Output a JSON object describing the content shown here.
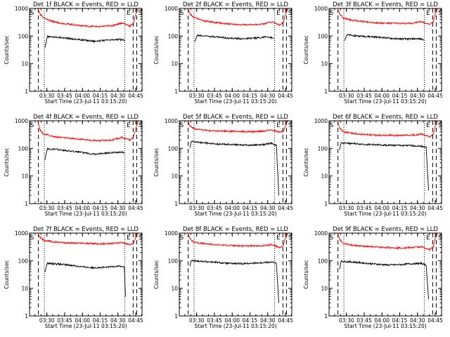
{
  "chart_data": [
    {
      "type": "line",
      "title": "Det 1f BLACK = Events, RED = LLD",
      "xlabel": "Start Time (23-Jul-11 03:15:20)",
      "ylabel": "Counts/sec",
      "yscale": "log",
      "ylim": [
        1,
        1000
      ],
      "yticks": [
        "1",
        "10",
        "100",
        "1000"
      ],
      "x_ticks": [
        "03:30",
        "03:45",
        "04:00",
        "04:15",
        "04:30",
        "04:45"
      ],
      "xlim_min": [
        0,
        95
      ],
      "markers": {
        "dashed_min": [
          7.5,
          87.5,
          90.5
        ],
        "dotted_min": [
          12.5,
          80.5
        ],
        "letters": [
          {
            "text": "S",
            "x_min": 0.5
          },
          {
            "text": "E",
            "x_min": 82
          },
          {
            "text": "S",
            "x_min": 92
          }
        ]
      },
      "series": [
        {
          "color": "#000000",
          "x_min": [
            13,
            15,
            25,
            35,
            45,
            55,
            65,
            75,
            80
          ],
          "values": [
            40,
            95,
            90,
            80,
            72,
            65,
            70,
            75,
            72
          ]
        },
        {
          "color": "#ff0000",
          "x_min": [
            7,
            9,
            12,
            20,
            30,
            40,
            50,
            60,
            70,
            78,
            85,
            88,
            90,
            92
          ],
          "values": [
            1000,
            620,
            450,
            330,
            280,
            250,
            225,
            220,
            240,
            300,
            230,
            300,
            700,
            1000
          ]
        }
      ]
    },
    {
      "type": "line",
      "title": "Det 2f BLACK = Events, RED = LLD",
      "xlabel": "Start Time (23-Jul-11 03:15:20)",
      "ylabel": "Counts/sec",
      "yscale": "log",
      "ylim": [
        1,
        1000
      ],
      "yticks": [
        "1",
        "10",
        "100",
        "1000"
      ],
      "x_ticks": [
        "03:30",
        "03:45",
        "04:00",
        "04:15",
        "04:30",
        "04:45"
      ],
      "xlim_min": [
        0,
        95
      ],
      "markers": {
        "dashed_min": [
          7.5,
          87.5,
          90.5
        ],
        "dotted_min": [
          12.5,
          80.5
        ],
        "letters": [
          {
            "text": "S",
            "x_min": 0.5
          },
          {
            "text": "E",
            "x_min": 82
          },
          {
            "text": "S",
            "x_min": 92
          }
        ]
      },
      "series": [
        {
          "color": "#000000",
          "x_min": [
            13,
            15,
            25,
            35,
            45,
            55,
            65,
            75,
            80
          ],
          "values": [
            60,
            105,
            100,
            90,
            82,
            80,
            85,
            95,
            80
          ]
        },
        {
          "color": "#ff0000",
          "x_min": [
            7,
            9,
            12,
            20,
            30,
            40,
            50,
            60,
            70,
            78,
            85,
            88,
            90,
            92
          ],
          "values": [
            1000,
            650,
            480,
            360,
            310,
            280,
            260,
            255,
            270,
            320,
            250,
            320,
            750,
            1000
          ]
        }
      ]
    },
    {
      "type": "line",
      "title": "Det 3f BLACK = Events, RED = LLD",
      "xlabel": "Start Time (23-Jul-11 03:15:20)",
      "ylabel": "Counts/sec",
      "yscale": "log",
      "ylim": [
        1,
        1000
      ],
      "yticks": [
        "1",
        "10",
        "100",
        "1000"
      ],
      "x_ticks": [
        "03:30",
        "03:45",
        "04:00",
        "04:15",
        "04:30",
        "04:45"
      ],
      "xlim_min": [
        0,
        95
      ],
      "markers": {
        "dashed_min": [
          7.5,
          87.5,
          90.5
        ],
        "dotted_min": [
          12.5,
          80.5
        ],
        "letters": [
          {
            "text": "S",
            "x_min": 0.5
          },
          {
            "text": "E",
            "x_min": 82
          },
          {
            "text": "S",
            "x_min": 92
          }
        ]
      },
      "series": [
        {
          "color": "#000000",
          "x_min": [
            13,
            15,
            25,
            35,
            45,
            55,
            65,
            75,
            80
          ],
          "values": [
            70,
            110,
            100,
            95,
            88,
            80,
            78,
            80,
            75
          ]
        },
        {
          "color": "#ff0000",
          "x_min": [
            7,
            9,
            12,
            20,
            30,
            40,
            50,
            60,
            70,
            78,
            85,
            88,
            90,
            92
          ],
          "values": [
            1000,
            620,
            450,
            370,
            330,
            300,
            290,
            285,
            290,
            330,
            260,
            330,
            760,
            1000
          ]
        }
      ]
    },
    {
      "type": "line",
      "title": "Det 4f BLACK = Events, RED = LLD",
      "xlabel": "Start Time (23-Jul-11 03:15:20)",
      "ylabel": "Counts/sec",
      "yscale": "log",
      "ylim": [
        1,
        1000
      ],
      "yticks": [
        "1",
        "10",
        "100",
        "1000"
      ],
      "x_ticks": [
        "03:30",
        "03:45",
        "04:00",
        "04:15",
        "04:30",
        "04:45"
      ],
      "xlim_min": [
        0,
        95
      ],
      "markers": {
        "dashed_min": [
          7.5,
          87.5,
          90.5
        ],
        "dotted_min": [
          12.5,
          80.5
        ],
        "letters": [
          {
            "text": "S",
            "x_min": 0.5
          },
          {
            "text": "E",
            "x_min": 82
          },
          {
            "text": "S",
            "x_min": 92
          }
        ]
      },
      "series": [
        {
          "color": "#000000",
          "x_min": [
            13,
            15,
            25,
            35,
            45,
            55,
            65,
            75,
            80
          ],
          "values": [
            40,
            95,
            90,
            80,
            70,
            62,
            68,
            72,
            70
          ]
        },
        {
          "color": "#ff0000",
          "x_min": [
            7,
            9,
            12,
            20,
            30,
            40,
            50,
            60,
            70,
            78,
            85,
            88,
            90,
            92
          ],
          "values": [
            1000,
            450,
            330,
            270,
            240,
            220,
            200,
            190,
            200,
            250,
            200,
            260,
            600,
            1000
          ]
        }
      ]
    },
    {
      "type": "line",
      "title": "Det 5f BLACK = Events, RED = LLD",
      "xlabel": "Start Time (23-Jul-11 03:15:20)",
      "ylabel": "Counts/sec",
      "yscale": "log",
      "ylim": [
        1,
        1000
      ],
      "yticks": [
        "1",
        "10",
        "100",
        "1000"
      ],
      "x_ticks": [
        "03:30",
        "03:45",
        "04:00",
        "04:15",
        "04:30",
        "04:45"
      ],
      "xlim_min": [
        0,
        95
      ],
      "markers": {
        "dashed_min": [
          7.5,
          87.5,
          90.5
        ],
        "dotted_min": [
          12.5,
          80.5
        ],
        "letters": [
          {
            "text": "S",
            "x_min": 0.5
          },
          {
            "text": "E",
            "x_min": 82
          },
          {
            "text": "S",
            "x_min": 92
          }
        ]
      },
      "series": [
        {
          "color": "#000000",
          "x_min": [
            9,
            10,
            20,
            30,
            40,
            50,
            60,
            70,
            78,
            82,
            84
          ],
          "values": [
            100,
            180,
            160,
            145,
            140,
            138,
            130,
            135,
            155,
            130,
            2
          ]
        },
        {
          "color": "#ff0000",
          "x_min": [
            7,
            9,
            12,
            20,
            30,
            40,
            50,
            60,
            70,
            78,
            85,
            88,
            90,
            92
          ],
          "values": [
            1000,
            680,
            520,
            460,
            430,
            420,
            410,
            400,
            420,
            470,
            380,
            420,
            780,
            1000
          ]
        }
      ]
    },
    {
      "type": "line",
      "title": "Det 6f BLACK = Events, RED = LLD",
      "xlabel": "Start Time (23-Jul-11 03:15:20)",
      "ylabel": "Counts/sec",
      "yscale": "log",
      "ylim": [
        1,
        1000
      ],
      "yticks": [
        "1",
        "10",
        "100",
        "1000"
      ],
      "x_ticks": [
        "03:30",
        "03:45",
        "04:00",
        "04:15",
        "04:30",
        "04:45"
      ],
      "xlim_min": [
        0,
        95
      ],
      "markers": {
        "dashed_min": [
          7.5,
          87.5,
          90.5
        ],
        "dotted_min": [
          12.5,
          80.5
        ],
        "letters": [
          {
            "text": "S",
            "x_min": 0.5
          },
          {
            "text": "E",
            "x_min": 82
          },
          {
            "text": "S",
            "x_min": 92
          }
        ]
      },
      "series": [
        {
          "color": "#000000",
          "x_min": [
            9,
            10,
            20,
            30,
            40,
            50,
            60,
            70,
            78,
            82,
            84
          ],
          "values": [
            90,
            160,
            150,
            140,
            135,
            130,
            128,
            125,
            120,
            110,
            3
          ]
        },
        {
          "color": "#ff0000",
          "x_min": [
            7,
            9,
            12,
            20,
            30,
            40,
            50,
            60,
            70,
            78,
            85,
            88,
            90,
            92
          ],
          "values": [
            1000,
            560,
            400,
            350,
            320,
            300,
            300,
            290,
            300,
            330,
            260,
            320,
            760,
            1000
          ]
        }
      ]
    },
    {
      "type": "line",
      "title": "Det 7f BLACK = Events, RED = LLD",
      "xlabel": "Start Time (23-Jul-11 03:15:20)",
      "ylabel": "Counts/sec",
      "yscale": "log",
      "ylim": [
        1,
        1000
      ],
      "yticks": [
        "1",
        "10",
        "100",
        "1000"
      ],
      "x_ticks": [
        "03:30",
        "03:45",
        "04:00",
        "04:15",
        "04:30",
        "04:45"
      ],
      "xlim_min": [
        0,
        95
      ],
      "markers": {
        "dashed_min": [
          7.5,
          87.5,
          90.5
        ],
        "dotted_min": [
          12.5,
          80.5
        ],
        "letters": [
          {
            "text": "S",
            "x_min": 0.5
          },
          {
            "text": "E",
            "x_min": 82
          },
          {
            "text": "S",
            "x_min": 92
          }
        ]
      },
      "series": [
        {
          "color": "#000000",
          "x_min": [
            13,
            15,
            25,
            35,
            45,
            55,
            65,
            75,
            80,
            81
          ],
          "values": [
            40,
            80,
            75,
            68,
            60,
            55,
            58,
            65,
            60,
            5
          ]
        },
        {
          "color": "#ff0000",
          "x_min": [
            7,
            9,
            12,
            20,
            30,
            40,
            50,
            60,
            70,
            78,
            85,
            88,
            90,
            92
          ],
          "values": [
            1000,
            700,
            550,
            480,
            450,
            430,
            420,
            410,
            420,
            460,
            380,
            430,
            800,
            1000
          ]
        }
      ]
    },
    {
      "type": "line",
      "title": "Det 8f BLACK = Events, RED = LLD",
      "xlabel": "Start Time (23-Jul-11 03:15:20)",
      "ylabel": "Counts/sec",
      "yscale": "log",
      "ylim": [
        1,
        1000
      ],
      "yticks": [
        "1",
        "10",
        "100",
        "1000"
      ],
      "x_ticks": [
        "03:30",
        "03:45",
        "04:00",
        "04:15",
        "04:30",
        "04:45"
      ],
      "xlim_min": [
        0,
        95
      ],
      "markers": {
        "dashed_min": [
          7.5,
          87.5,
          90.5
        ],
        "dotted_min": [
          12.5,
          80.5
        ],
        "letters": [
          {
            "text": "S",
            "x_min": 0.5
          },
          {
            "text": "E",
            "x_min": 82
          },
          {
            "text": "S",
            "x_min": 92
          }
        ]
      },
      "series": [
        {
          "color": "#000000",
          "x_min": [
            9,
            10,
            20,
            30,
            40,
            50,
            60,
            70,
            78,
            82,
            84
          ],
          "values": [
            60,
            100,
            95,
            88,
            80,
            78,
            80,
            85,
            90,
            80,
            3
          ]
        },
        {
          "color": "#ff0000",
          "x_min": [
            7,
            9,
            12,
            20,
            30,
            40,
            50,
            60,
            70,
            78,
            85,
            88,
            90,
            92
          ],
          "values": [
            1000,
            650,
            480,
            420,
            380,
            360,
            350,
            340,
            350,
            380,
            300,
            360,
            760,
            1000
          ]
        }
      ]
    },
    {
      "type": "line",
      "title": "Det 9f BLACK = Events, RED = LLD",
      "xlabel": "Start Time (23-Jul-11 03:15:20)",
      "ylabel": "Counts/sec",
      "yscale": "log",
      "ylim": [
        1,
        1000
      ],
      "yticks": [
        "1",
        "10",
        "100",
        "1000"
      ],
      "x_ticks": [
        "03:30",
        "03:45",
        "04:00",
        "04:15",
        "04:30",
        "04:45"
      ],
      "xlim_min": [
        0,
        95
      ],
      "markers": {
        "dashed_min": [
          7.5,
          87.5,
          90.5
        ],
        "dotted_min": [
          12.5,
          80.5
        ],
        "letters": [
          {
            "text": "S",
            "x_min": 0.5
          },
          {
            "text": "E",
            "x_min": 82
          },
          {
            "text": "S",
            "x_min": 92
          }
        ]
      },
      "series": [
        {
          "color": "#000000",
          "x_min": [
            9,
            10,
            20,
            30,
            40,
            50,
            60,
            70,
            78,
            82,
            84
          ],
          "values": [
            50,
            95,
            90,
            82,
            75,
            70,
            72,
            78,
            80,
            70,
            4
          ]
        },
        {
          "color": "#ff0000",
          "x_min": [
            7,
            9,
            12,
            20,
            30,
            40,
            50,
            60,
            70,
            78,
            85,
            88,
            90,
            92
          ],
          "values": [
            1000,
            600,
            420,
            360,
            330,
            310,
            300,
            290,
            300,
            320,
            250,
            320,
            740,
            1000
          ]
        }
      ]
    }
  ]
}
